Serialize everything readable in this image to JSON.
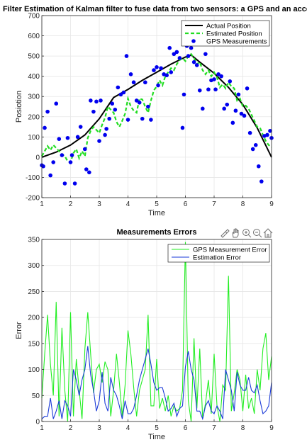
{
  "chart_data": [
    {
      "type": "line",
      "title": "Filter Estimation of Kalman filter to fuse data from two sensors: a GPS and an acce",
      "xlabel": "Time",
      "ylabel": "Posiotion",
      "xlim": [
        1,
        9
      ],
      "ylim": [
        -200,
        700
      ],
      "xticks": [
        "1",
        "2",
        "3",
        "4",
        "5",
        "6",
        "7",
        "8",
        "9"
      ],
      "yticks": [
        "-200",
        "-100",
        "0",
        "100",
        "200",
        "300",
        "400",
        "500",
        "600",
        "700"
      ],
      "grid": true,
      "legend_position": "top-right",
      "series": [
        {
          "name": "Actual Position",
          "style": "line",
          "color": "#000000",
          "x": [
            1,
            1.5,
            2,
            2.5,
            3,
            3.5,
            4,
            4.5,
            5,
            5.5,
            6,
            6.2,
            6.5,
            7,
            7.5,
            8,
            8.5,
            9
          ],
          "y": [
            0,
            25,
            60,
            110,
            190,
            295,
            335,
            380,
            420,
            460,
            495,
            505,
            470,
            415,
            345,
            260,
            145,
            0
          ]
        },
        {
          "name": "Estimated Position",
          "style": "dashed",
          "color": "#22dd22",
          "x": [
            1,
            1.1,
            1.2,
            1.3,
            1.4,
            1.5,
            1.6,
            1.7,
            1.8,
            1.9,
            2,
            2.1,
            2.2,
            2.3,
            2.4,
            2.5,
            2.6,
            2.7,
            2.8,
            2.9,
            3,
            3.1,
            3.2,
            3.3,
            3.4,
            3.5,
            3.6,
            3.7,
            3.8,
            3.9,
            4,
            4.1,
            4.2,
            4.3,
            4.4,
            4.5,
            4.6,
            4.7,
            4.8,
            4.9,
            5,
            5.1,
            5.2,
            5.3,
            5.4,
            5.5,
            5.6,
            5.7,
            5.8,
            5.9,
            6,
            6.1,
            6.2,
            6.3,
            6.4,
            6.5,
            6.6,
            6.7,
            6.8,
            6.9,
            7,
            7.1,
            7.2,
            7.3,
            7.4,
            7.5,
            7.6,
            7.7,
            7.8,
            7.9,
            8,
            8.1,
            8.2,
            8.3,
            8.4,
            8.5,
            8.6,
            8.7,
            8.8,
            8.9,
            9
          ],
          "y": [
            5,
            30,
            55,
            35,
            60,
            45,
            30,
            15,
            5,
            -20,
            -25,
            20,
            40,
            -5,
            30,
            5,
            95,
            130,
            150,
            135,
            120,
            160,
            195,
            250,
            235,
            220,
            175,
            150,
            180,
            215,
            290,
            250,
            230,
            220,
            290,
            285,
            250,
            220,
            280,
            330,
            350,
            380,
            355,
            400,
            420,
            440,
            430,
            460,
            480,
            490,
            475,
            500,
            510,
            490,
            460,
            470,
            430,
            410,
            430,
            400,
            420,
            395,
            345,
            360,
            340,
            370,
            350,
            340,
            280,
            290,
            250,
            255,
            240,
            210,
            180,
            150,
            145,
            110,
            80,
            60,
            50
          ]
        },
        {
          "name": "GPS Measurements",
          "style": "scatter",
          "color": "#0000ee",
          "x": [
            1.0,
            1.05,
            1.1,
            1.2,
            1.3,
            1.4,
            1.5,
            1.6,
            1.7,
            1.8,
            1.9,
            2.0,
            2.05,
            2.15,
            2.25,
            2.35,
            2.5,
            2.55,
            2.65,
            2.7,
            2.8,
            2.9,
            3.0,
            3.05,
            3.2,
            3.25,
            3.35,
            3.45,
            3.55,
            3.65,
            3.75,
            3.85,
            3.95,
            4.0,
            4.1,
            4.2,
            4.3,
            4.4,
            4.5,
            4.6,
            4.7,
            4.8,
            4.9,
            5.0,
            5.05,
            5.15,
            5.25,
            5.35,
            5.45,
            5.5,
            5.6,
            5.7,
            5.8,
            5.9,
            5.95,
            6.05,
            6.1,
            6.2,
            6.3,
            6.4,
            6.5,
            6.6,
            6.7,
            6.8,
            6.9,
            7.0,
            7.05,
            7.15,
            7.25,
            7.35,
            7.45,
            7.55,
            7.65,
            7.75,
            7.85,
            7.95,
            8.05,
            8.15,
            8.25,
            8.35,
            8.45,
            8.55,
            8.65,
            8.75,
            8.85,
            8.95,
            9.0
          ],
          "y": [
            -40,
            -45,
            145,
            225,
            -90,
            -25,
            265,
            90,
            10,
            -130,
            95,
            -25,
            10,
            -130,
            100,
            150,
            40,
            -60,
            -75,
            280,
            225,
            275,
            80,
            280,
            110,
            140,
            190,
            265,
            235,
            345,
            310,
            320,
            500,
            185,
            410,
            370,
            280,
            270,
            190,
            370,
            250,
            185,
            430,
            445,
            355,
            440,
            410,
            405,
            540,
            420,
            510,
            520,
            490,
            145,
            310,
            550,
            500,
            540,
            470,
            455,
            330,
            240,
            510,
            335,
            380,
            385,
            335,
            410,
            400,
            240,
            260,
            375,
            170,
            230,
            310,
            215,
            205,
            340,
            120,
            40,
            60,
            -45,
            -120,
            105,
            110,
            130,
            95
          ]
        }
      ]
    },
    {
      "type": "line",
      "title": "Measurements Errors",
      "xlabel": "Time",
      "ylabel": "Error",
      "xlim": [
        1,
        9
      ],
      "ylim": [
        0,
        350
      ],
      "xticks": [
        "1",
        "2",
        "3",
        "4",
        "5",
        "6",
        "7",
        "8",
        "9"
      ],
      "yticks": [
        "0",
        "50",
        "100",
        "150",
        "200",
        "250",
        "300",
        "350"
      ],
      "grid": true,
      "legend_position": "top-right",
      "series": [
        {
          "name": "GPS Measurement Error",
          "color": "#22ee22",
          "x": [
            1,
            1.1,
            1.2,
            1.3,
            1.4,
            1.5,
            1.6,
            1.7,
            1.8,
            1.9,
            2,
            2.1,
            2.2,
            2.3,
            2.4,
            2.5,
            2.6,
            2.7,
            2.8,
            2.9,
            3,
            3.1,
            3.2,
            3.3,
            3.4,
            3.5,
            3.6,
            3.7,
            3.8,
            3.9,
            4,
            4.1,
            4.2,
            4.3,
            4.4,
            4.5,
            4.6,
            4.7,
            4.8,
            4.9,
            5,
            5.1,
            5.2,
            5.3,
            5.4,
            5.5,
            5.6,
            5.7,
            5.8,
            5.9,
            6,
            6.1,
            6.2,
            6.3,
            6.4,
            6.5,
            6.6,
            6.7,
            6.8,
            6.9,
            7,
            7.1,
            7.2,
            7.3,
            7.4,
            7.5,
            7.6,
            7.7,
            7.8,
            7.9,
            8,
            8.1,
            8.2,
            8.3,
            8.4,
            8.5,
            8.6,
            8.7,
            8.8,
            8.9,
            9
          ],
          "y": [
            45,
            130,
            205,
            110,
            50,
            230,
            10,
            180,
            60,
            0,
            210,
            10,
            120,
            60,
            5,
            140,
            210,
            130,
            55,
            100,
            110,
            75,
            115,
            100,
            10,
            60,
            130,
            75,
            10,
            70,
            175,
            130,
            65,
            10,
            60,
            80,
            100,
            205,
            30,
            30,
            120,
            25,
            45,
            20,
            50,
            10,
            30,
            20,
            25,
            60,
            345,
            40,
            0,
            160,
            25,
            140,
            5,
            35,
            80,
            15,
            130,
            30,
            0,
            70,
            60,
            280,
            20,
            55,
            100,
            80,
            20,
            90,
            25,
            45,
            15,
            100,
            60,
            140,
            170,
            80,
            125
          ]
        },
        {
          "name": "Estimation Error",
          "color": "#1a3ad8",
          "x": [
            1,
            1.1,
            1.2,
            1.3,
            1.4,
            1.5,
            1.6,
            1.7,
            1.8,
            1.9,
            2,
            2.1,
            2.2,
            2.3,
            2.4,
            2.5,
            2.6,
            2.7,
            2.8,
            2.9,
            3,
            3.1,
            3.2,
            3.3,
            3.4,
            3.5,
            3.6,
            3.7,
            3.8,
            3.9,
            4,
            4.1,
            4.2,
            4.3,
            4.4,
            4.5,
            4.6,
            4.7,
            4.8,
            4.9,
            5,
            5.1,
            5.2,
            5.3,
            5.4,
            5.5,
            5.6,
            5.7,
            5.8,
            5.9,
            6,
            6.1,
            6.2,
            6.3,
            6.4,
            6.5,
            6.6,
            6.7,
            6.8,
            6.9,
            7,
            7.1,
            7.2,
            7.3,
            7.4,
            7.5,
            7.6,
            7.7,
            7.8,
            7.9,
            8,
            8.1,
            8.2,
            8.3,
            8.4,
            8.5,
            8.6,
            8.7,
            8.8,
            8.9,
            9
          ],
          "y": [
            5,
            10,
            10,
            45,
            5,
            20,
            40,
            5,
            40,
            30,
            10,
            100,
            80,
            50,
            80,
            100,
            145,
            90,
            60,
            20,
            40,
            95,
            35,
            20,
            85,
            60,
            50,
            30,
            5,
            40,
            15,
            15,
            25,
            50,
            80,
            100,
            120,
            140,
            110,
            75,
            60,
            65,
            65,
            45,
            20,
            25,
            35,
            10,
            25,
            30,
            105,
            135,
            100,
            80,
            20,
            20,
            5,
            30,
            40,
            20,
            15,
            30,
            20,
            5,
            100,
            80,
            60,
            20,
            95,
            70,
            60,
            60,
            85,
            60,
            55,
            70,
            40,
            15,
            20,
            30,
            75
          ]
        }
      ]
    }
  ]
}
